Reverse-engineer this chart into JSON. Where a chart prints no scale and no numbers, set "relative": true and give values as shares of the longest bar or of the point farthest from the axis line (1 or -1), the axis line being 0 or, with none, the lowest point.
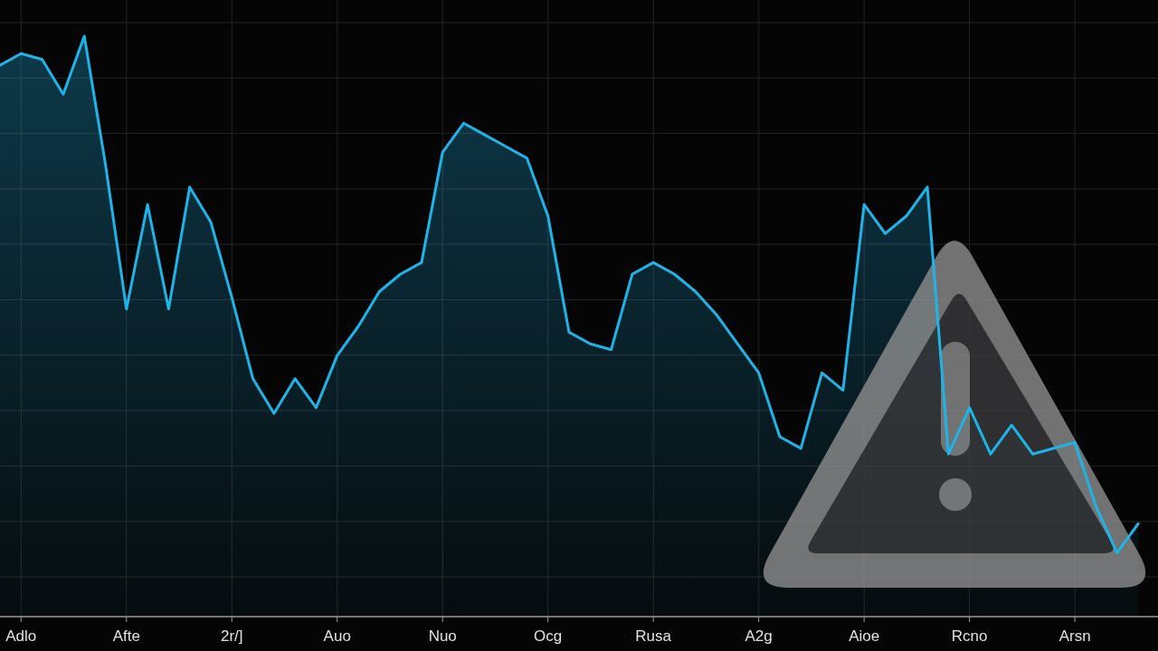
{
  "chart_data": {
    "type": "area",
    "relative": true,
    "color": "#1fb4e8",
    "categories": [
      null,
      "Adlo",
      null,
      null,
      null,
      null,
      "Afte",
      null,
      null,
      null,
      null,
      "2r/]",
      null,
      null,
      null,
      null,
      "Auo",
      null,
      null,
      null,
      null,
      "Nuo",
      null,
      null,
      null,
      null,
      "Ocg",
      null,
      null,
      null,
      null,
      "Rusa",
      null,
      null,
      null,
      null,
      "A2g",
      null,
      null,
      null,
      null,
      "Aioe",
      null,
      null,
      null,
      null,
      "Rcno",
      null,
      null,
      null,
      null,
      "Arsn",
      null,
      null,
      null
    ],
    "values": [
      0.95,
      0.97,
      0.96,
      0.9,
      1,
      0.78,
      0.53,
      0.71,
      0.53,
      0.74,
      0.68,
      0.55,
      0.41,
      0.35,
      0.41,
      0.36,
      0.45,
      0.5,
      0.56,
      0.59,
      0.61,
      0.8,
      0.85,
      0.83,
      0.81,
      0.79,
      0.69,
      0.49,
      0.47,
      0.46,
      0.59,
      0.61,
      0.59,
      0.56,
      0.52,
      0.47,
      0.42,
      0.31,
      0.29,
      0.42,
      0.39,
      0.71,
      0.66,
      0.69,
      0.74,
      0.28,
      0.36,
      0.28,
      0.33,
      0.28,
      0.29,
      0.3,
      0.19,
      0.11,
      0.16
    ],
    "grid": true
  }
}
